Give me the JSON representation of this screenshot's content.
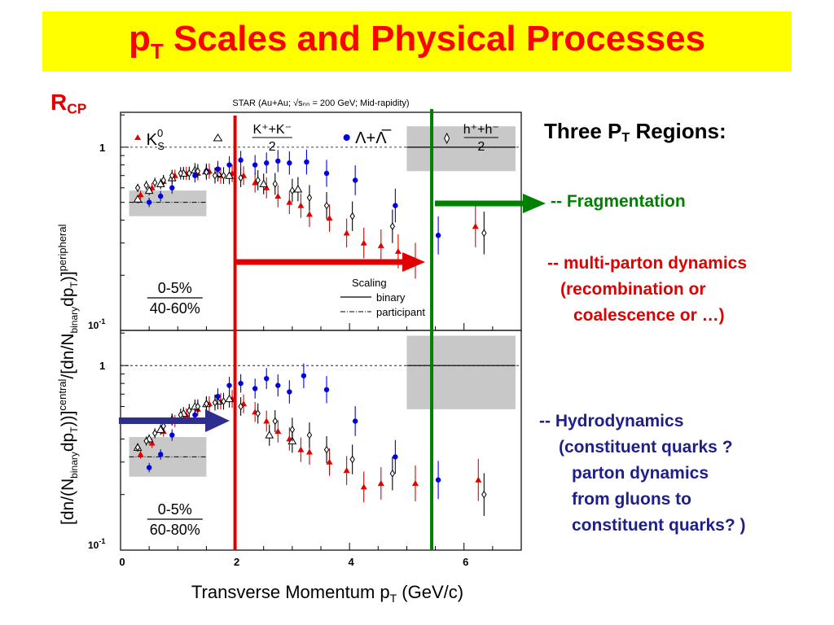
{
  "slide": {
    "title_main": "p",
    "title_sub": "T",
    "title_rest": " Scales and Physical Processes",
    "rcp_main": "R",
    "rcp_sub": "CP",
    "regions_title_a": "Three P",
    "regions_title_sub": "T",
    "regions_title_b": " Regions:",
    "fragmentation": "-- Fragmentation",
    "multi_parton_lines": [
      "-- multi-parton dynamics",
      "(recombination or",
      "coalescence or …)"
    ],
    "hydro_lines": [
      "-- Hydrodynamics",
      "(constituent quarks ?",
      "parton dynamics",
      "from gluons to",
      "constituent quarks? )"
    ],
    "colors": {
      "title_bg": "#ffff00",
      "title_text": "#ff0000",
      "red": "#e00000",
      "green": "#008000",
      "navy": "#1f1f8a"
    }
  },
  "chart_data": {
    "type": "scatter",
    "header": "STAR (Au+Au; √s_NN = 200 GeV; Mid-rapidity)",
    "xlabel": "Transverse Momentum p_T (GeV/c)",
    "ylabel": "[dn/(N_binary dp_T)]^central / [dn/N_binary dp_T)]^peripheral",
    "xlim": [
      0,
      7
    ],
    "ylim": [
      0.1,
      1.55
    ],
    "yscale": "log",
    "x_ticks": [
      "0",
      "2",
      "4",
      "6"
    ],
    "y_ticks": [
      "1",
      "10^-1"
    ],
    "legend": [
      "K0S",
      "K⁺+K⁻ / 2",
      "Λ+Λbar",
      "h⁺+h⁻ / 2"
    ],
    "scaling_legend": {
      "title": "Scaling",
      "binary": "binary",
      "participant": "participant"
    },
    "vertical_markers": [
      {
        "x": 2.0,
        "color": "#e00000"
      },
      {
        "x": 5.45,
        "color": "#008000"
      }
    ],
    "panels": [
      {
        "label_top": "0-5%",
        "label_bottom": "40-60%",
        "participant_level": 0.5,
        "participant_band": [
          0.42,
          0.58
        ],
        "binary_band": [
          0.74,
          1.3
        ],
        "series": [
          {
            "name": "K0S",
            "marker": "triangle",
            "color": "#e00000",
            "points": [
              [
                0.35,
                0.55
              ],
              [
                0.55,
                0.6
              ],
              [
                0.75,
                0.65
              ],
              [
                0.95,
                0.7
              ],
              [
                1.15,
                0.72
              ],
              [
                1.35,
                0.72
              ],
              [
                1.55,
                0.74
              ],
              [
                1.75,
                0.7
              ],
              [
                1.95,
                0.72
              ],
              [
                2.15,
                0.7
              ],
              [
                2.35,
                0.64
              ],
              [
                2.55,
                0.6
              ],
              [
                2.75,
                0.54
              ],
              [
                2.95,
                0.5
              ],
              [
                3.15,
                0.48
              ],
              [
                3.3,
                0.43
              ],
              [
                3.65,
                0.41
              ],
              [
                3.95,
                0.34
              ],
              [
                4.25,
                0.3
              ],
              [
                4.55,
                0.29
              ],
              [
                4.85,
                0.27
              ],
              [
                5.15,
                0.24
              ],
              [
                6.2,
                0.37
              ]
            ]
          },
          {
            "name": "K+K/2",
            "marker": "triangle-open",
            "color": "#000000",
            "points": [
              [
                0.3,
                0.52
              ],
              [
                0.5,
                0.58
              ],
              [
                0.7,
                0.63
              ],
              [
                0.9,
                0.68
              ],
              [
                1.1,
                0.72
              ],
              [
                1.3,
                0.75
              ],
              [
                1.5,
                0.74
              ],
              [
                1.7,
                0.72
              ],
              [
                1.9,
                0.7
              ],
              [
                2.5,
                0.63
              ],
              [
                3.1,
                0.59
              ]
            ]
          },
          {
            "name": "Lambda",
            "marker": "circle",
            "color": "#0000e0",
            "points": [
              [
                0.5,
                0.5
              ],
              [
                0.7,
                0.54
              ],
              [
                0.9,
                0.6
              ],
              [
                1.3,
                0.7
              ],
              [
                1.5,
                0.74
              ],
              [
                1.7,
                0.76
              ],
              [
                1.9,
                0.8
              ],
              [
                2.1,
                0.85
              ],
              [
                2.35,
                0.8
              ],
              [
                2.55,
                0.82
              ],
              [
                2.75,
                0.84
              ],
              [
                2.95,
                0.82
              ],
              [
                3.25,
                0.83
              ],
              [
                3.6,
                0.72
              ],
              [
                4.1,
                0.66
              ],
              [
                4.8,
                0.48
              ],
              [
                5.55,
                0.33
              ]
            ]
          },
          {
            "name": "h+h/2",
            "marker": "diamond-open",
            "color": "#000000",
            "points": [
              [
                0.3,
                0.6
              ],
              [
                0.45,
                0.62
              ],
              [
                0.6,
                0.64
              ],
              [
                0.75,
                0.66
              ],
              [
                0.9,
                0.7
              ],
              [
                1.05,
                0.72
              ],
              [
                1.2,
                0.72
              ],
              [
                1.35,
                0.74
              ],
              [
                1.5,
                0.73
              ],
              [
                1.65,
                0.7
              ],
              [
                1.8,
                0.7
              ],
              [
                2.1,
                0.68
              ],
              [
                2.4,
                0.66
              ],
              [
                2.7,
                0.63
              ],
              [
                3.0,
                0.58
              ],
              [
                3.3,
                0.53
              ],
              [
                3.6,
                0.48
              ],
              [
                4.05,
                0.42
              ],
              [
                4.75,
                0.37
              ],
              [
                6.35,
                0.34
              ]
            ]
          }
        ]
      },
      {
        "label_top": "0-5%",
        "label_bottom": "60-80%",
        "participant_level": 0.32,
        "participant_band": [
          0.25,
          0.41
        ],
        "binary_band": [
          0.58,
          1.45
        ],
        "series": [
          {
            "name": "K0S",
            "marker": "triangle",
            "color": "#e00000",
            "points": [
              [
                0.35,
                0.33
              ],
              [
                0.55,
                0.38
              ],
              [
                0.75,
                0.44
              ],
              [
                0.95,
                0.5
              ],
              [
                1.15,
                0.54
              ],
              [
                1.35,
                0.58
              ],
              [
                1.55,
                0.62
              ],
              [
                1.75,
                0.64
              ],
              [
                1.95,
                0.66
              ],
              [
                2.15,
                0.62
              ],
              [
                2.35,
                0.56
              ],
              [
                2.55,
                0.5
              ],
              [
                2.75,
                0.44
              ],
              [
                2.95,
                0.4
              ],
              [
                3.15,
                0.35
              ],
              [
                3.3,
                0.34
              ],
              [
                3.65,
                0.3
              ],
              [
                3.95,
                0.27
              ],
              [
                4.25,
                0.22
              ],
              [
                4.55,
                0.23
              ],
              [
                5.15,
                0.23
              ],
              [
                6.25,
                0.24
              ]
            ]
          },
          {
            "name": "K+K/2",
            "marker": "triangle-open",
            "color": "#000000",
            "points": [
              [
                0.3,
                0.36
              ],
              [
                0.5,
                0.4
              ],
              [
                0.7,
                0.45
              ],
              [
                0.9,
                0.51
              ],
              [
                1.1,
                0.55
              ],
              [
                1.3,
                0.6
              ],
              [
                1.5,
                0.62
              ],
              [
                1.7,
                0.64
              ],
              [
                1.9,
                0.66
              ],
              [
                2.6,
                0.42
              ],
              [
                3.0,
                0.39
              ]
            ]
          },
          {
            "name": "Lambda",
            "marker": "circle",
            "color": "#0000e0",
            "points": [
              [
                0.5,
                0.28
              ],
              [
                0.7,
                0.33
              ],
              [
                0.9,
                0.42
              ],
              [
                1.3,
                0.54
              ],
              [
                1.7,
                0.68
              ],
              [
                1.9,
                0.78
              ],
              [
                2.1,
                0.8
              ],
              [
                2.35,
                0.75
              ],
              [
                2.55,
                0.85
              ],
              [
                2.75,
                0.78
              ],
              [
                2.95,
                0.72
              ],
              [
                3.2,
                0.88
              ],
              [
                3.6,
                0.74
              ],
              [
                4.1,
                0.5
              ],
              [
                4.8,
                0.32
              ],
              [
                5.55,
                0.24
              ]
            ]
          },
          {
            "name": "h+h/2",
            "marker": "diamond-open",
            "color": "#000000",
            "points": [
              [
                0.3,
                0.36
              ],
              [
                0.45,
                0.39
              ],
              [
                0.6,
                0.43
              ],
              [
                0.75,
                0.47
              ],
              [
                0.9,
                0.51
              ],
              [
                1.05,
                0.54
              ],
              [
                1.2,
                0.57
              ],
              [
                1.35,
                0.6
              ],
              [
                1.5,
                0.62
              ],
              [
                1.65,
                0.63
              ],
              [
                1.8,
                0.64
              ],
              [
                2.1,
                0.6
              ],
              [
                2.4,
                0.55
              ],
              [
                2.7,
                0.5
              ],
              [
                3.0,
                0.45
              ],
              [
                3.3,
                0.42
              ],
              [
                3.6,
                0.35
              ],
              [
                4.05,
                0.31
              ],
              [
                4.75,
                0.26
              ],
              [
                6.35,
                0.2
              ]
            ]
          }
        ]
      }
    ]
  }
}
